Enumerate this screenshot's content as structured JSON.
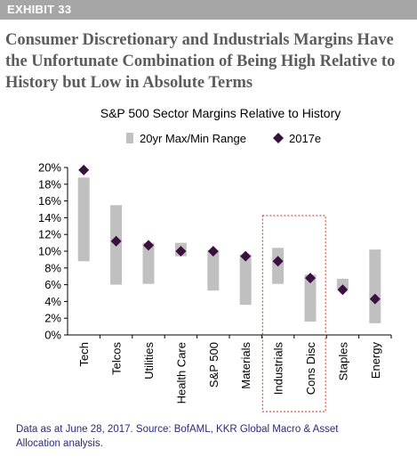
{
  "exhibit": "EXHIBIT 33",
  "headline_lines": [
    "Consumer Discretionary and Industrials Margins Have",
    "the Unfortunate Combination of Being High Relative to",
    "History but Low in Absolute Terms"
  ],
  "source_lines": [
    "Data as at June 28, 2017. Source: BofAML, KKR Global Macro & Asset",
    "Allocation analysis."
  ],
  "colors": {
    "range_bar": "#c0c0c0",
    "marker": "#3b0f3f",
    "highlight_box": "#d9534f",
    "axis": "#000000",
    "text": "#000000"
  },
  "chart_data": {
    "type": "bar",
    "title": "S&P 500 Sector Margins Relative to History",
    "categories": [
      "Tech",
      "Telcos",
      "Utilities",
      "Health Care",
      "S&P 500",
      "Materials",
      "Industrials",
      "Cons Disc",
      "Staples",
      "Energy"
    ],
    "series": [
      {
        "name": "20yr Max/Min Range",
        "kind": "floating_range",
        "min": [
          8.8,
          6.0,
          6.1,
          9.4,
          5.3,
          3.6,
          6.1,
          1.6,
          5.5,
          1.4
        ],
        "max": [
          18.8,
          15.5,
          11.0,
          11.0,
          10.1,
          9.6,
          10.4,
          7.2,
          6.7,
          10.2
        ]
      },
      {
        "name": "2017e",
        "kind": "diamond_marker",
        "values": [
          19.7,
          11.2,
          10.7,
          10.0,
          10.0,
          9.4,
          8.8,
          6.8,
          5.4,
          4.3
        ]
      }
    ],
    "ylim": [
      0,
      20
    ],
    "y_ticks": [
      "0%",
      "2%",
      "4%",
      "6%",
      "8%",
      "10%",
      "12%",
      "14%",
      "16%",
      "18%",
      "20%"
    ],
    "y_tick_step": 2,
    "legend_position": "top",
    "grid": false,
    "highlighted_categories": [
      "Industrials",
      "Cons Disc"
    ]
  }
}
